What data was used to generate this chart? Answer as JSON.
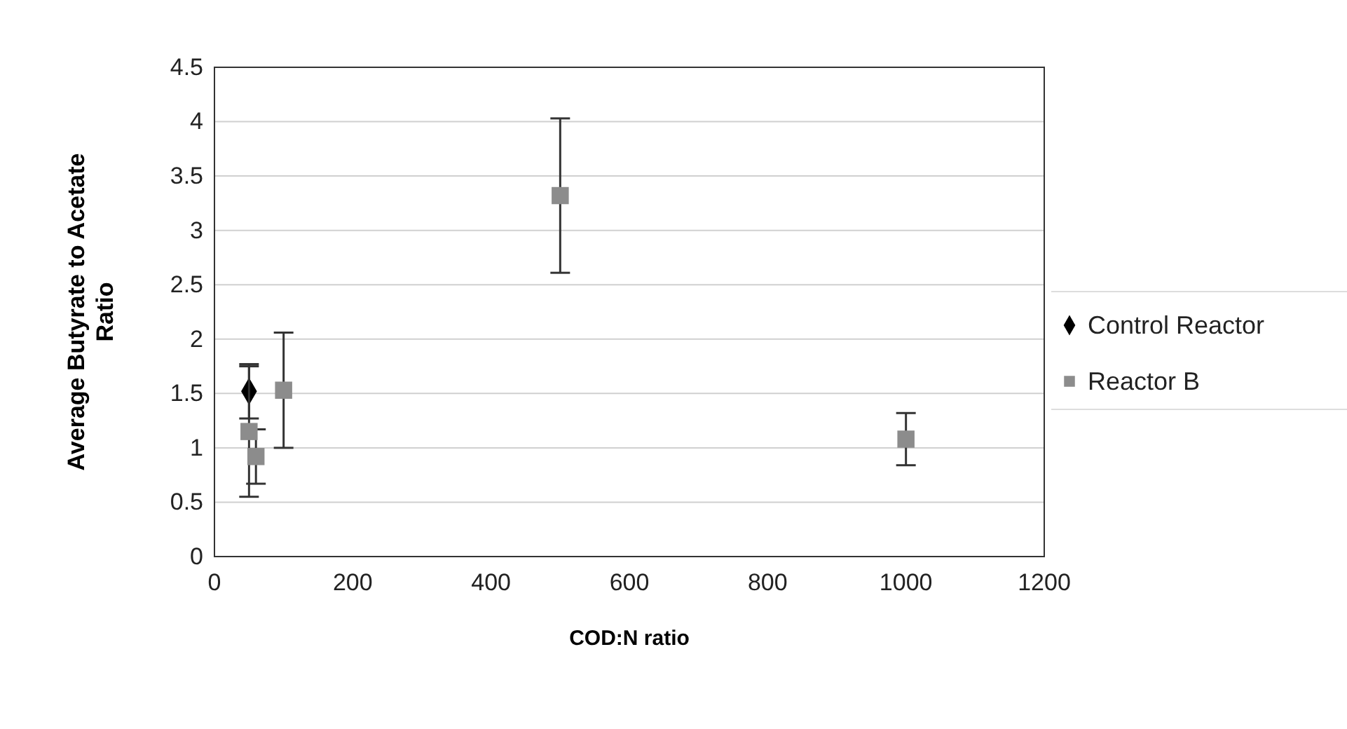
{
  "chart_data": {
    "type": "scatter",
    "xlabel": "COD:N ratio",
    "ylabel": "Average Butyrate to Acetate Ratio",
    "xlim": [
      0,
      1200
    ],
    "xticks": [
      0,
      200,
      400,
      600,
      800,
      1000,
      1200
    ],
    "ylim": [
      0,
      4.5
    ],
    "yticks": [
      0,
      0.5,
      1,
      1.5,
      2,
      2.5,
      3,
      3.5,
      4,
      4.5
    ],
    "grid": "y",
    "legend": "right",
    "series": [
      {
        "name": "Control Reactor",
        "color": "#000000",
        "marker": "diamond",
        "x": [
          50
        ],
        "values": [
          1.52
        ],
        "errors": [
          0.25
        ]
      },
      {
        "name": "Reactor B",
        "color": "#8c8c8c",
        "marker": "square",
        "x": [
          50,
          60,
          100,
          500,
          1000
        ],
        "values": [
          1.15,
          0.92,
          1.53,
          3.32,
          1.08
        ],
        "errors": [
          0.6,
          0.25,
          0.53,
          0.71,
          0.24
        ]
      }
    ]
  }
}
